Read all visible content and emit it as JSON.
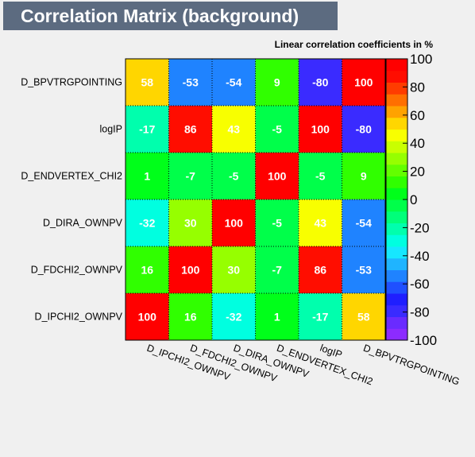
{
  "page_title": "Correlation Matrix (background)",
  "chart_data": {
    "type": "heatmap",
    "title": "Linear correlation coefficients in %",
    "xlabel": "",
    "ylabel": "",
    "x_categories": [
      "D_IPCHI2_OWNPV",
      "D_FDCHI2_OWNPV",
      "D_DIRA_OWNPV",
      "D_ENDVERTEX_CHI2",
      "logIP",
      "D_BPVTRGPOINTING"
    ],
    "y_categories_top_to_bottom": [
      "D_BPVTRGPOINTING",
      "logIP",
      "D_ENDVERTEX_CHI2",
      "D_DIRA_OWNPV",
      "D_FDCHI2_OWNPV",
      "D_IPCHI2_OWNPV"
    ],
    "values_top_to_bottom": [
      [
        58,
        -53,
        -54,
        9,
        -80,
        100
      ],
      [
        -17,
        86,
        43,
        -5,
        100,
        -80
      ],
      [
        1,
        -7,
        -5,
        100,
        -5,
        9
      ],
      [
        -32,
        30,
        100,
        -5,
        43,
        -54
      ],
      [
        16,
        100,
        30,
        -7,
        86,
        -53
      ],
      [
        100,
        16,
        -32,
        1,
        -17,
        58
      ]
    ],
    "zlim": [
      -100,
      100
    ],
    "colorbar_ticks": [
      100,
      80,
      60,
      40,
      20,
      0,
      -20,
      -40,
      -60,
      -80,
      -100
    ],
    "palette": [
      "#8c2bff",
      "#6a2bff",
      "#3a2bff",
      "#1f1fff",
      "#1f50ff",
      "#1f83ff",
      "#1fb4ff",
      "#16e7ff",
      "#00ffe0",
      "#00ffad",
      "#00ff7a",
      "#00ff4a",
      "#00ff1a",
      "#30ff00",
      "#63ff00",
      "#96ff00",
      "#c9ff00",
      "#f8ff00",
      "#ffd600",
      "#ffa200",
      "#ff6f00",
      "#ff3c00",
      "#ff0d00",
      "#ff0000"
    ]
  }
}
